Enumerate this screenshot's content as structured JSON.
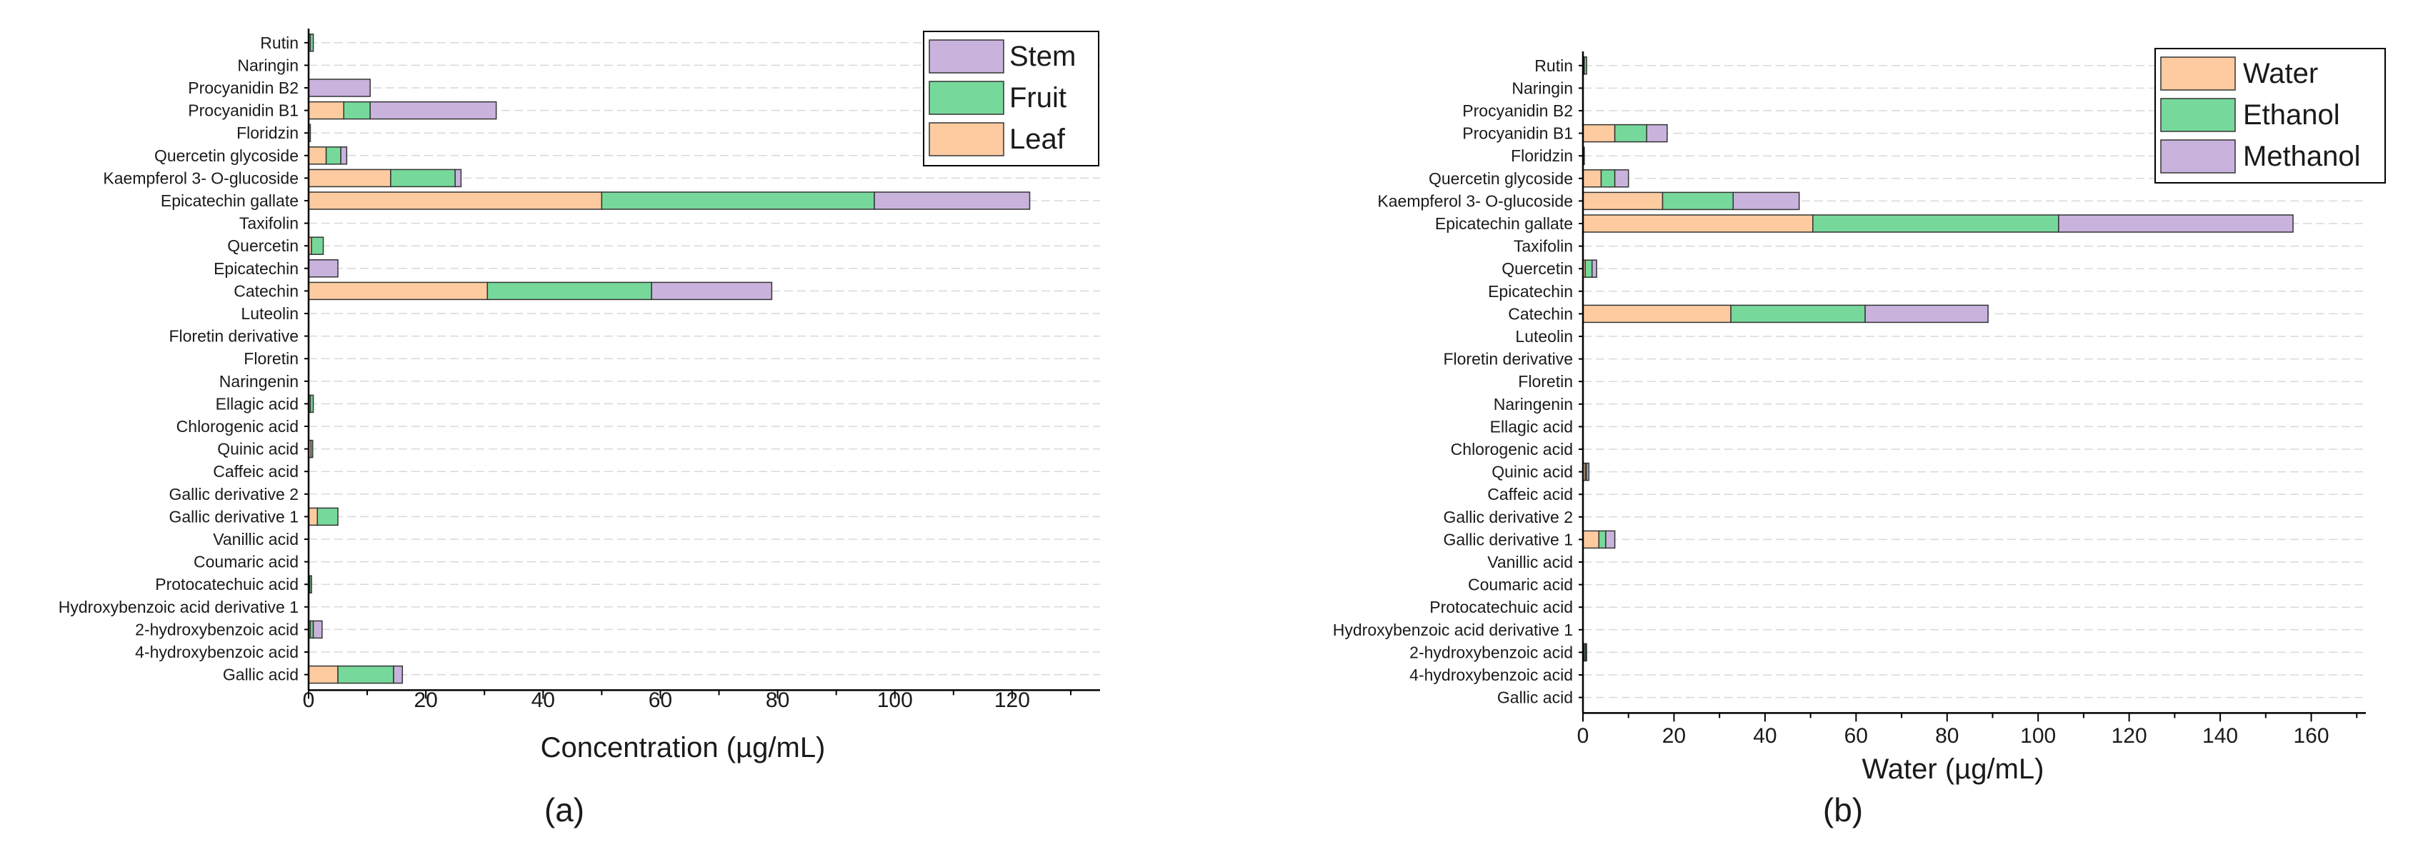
{
  "colors": {
    "leaf": "#fdcb9f",
    "fruit": "#76d99b",
    "stem": "#c9b3dd",
    "water": "#fdcb9f",
    "ethanol": "#76d99b",
    "methanol": "#c9b3dd",
    "grid": "#d9d9d9",
    "axis": "#000000"
  },
  "chart_data": [
    {
      "type": "bar",
      "orientation": "horizontal",
      "stacked": true,
      "panel_label": "(a)",
      "xlabel": "Concentration (µg/mL)",
      "ylabel": "",
      "xlim": [
        0,
        135
      ],
      "xticks": [
        "0",
        "20",
        "40",
        "60",
        "80",
        "100",
        "120"
      ],
      "grid": true,
      "legend_position": "top-right",
      "legend": [
        "Stem",
        "Fruit",
        "Leaf"
      ],
      "categories": [
        "Rutin",
        "Naringin",
        "Procyanidin B2",
        "Procyanidin B1",
        "Floridzin",
        "Quercetin glycoside",
        "Kaempferol 3- O-glucoside",
        "Epicatechin gallate",
        "Taxifolin",
        "Quercetin",
        "Epicatechin",
        "Catechin",
        "Luteolin",
        "Floretin derivative",
        "Floretin",
        "Naringenin",
        "Ellagic acid",
        "Chlorogenic acid",
        "Quinic acid",
        "Caffeic acid",
        "Gallic derivative 2",
        "Gallic derivative 1",
        "Vanillic acid",
        "Coumaric acid",
        "Protocatechuic acid",
        "Hydroxybenzoic acid derivative 1",
        "2-hydroxybenzoic acid",
        "4-hydroxybenzoic acid",
        "Gallic acid"
      ],
      "series": [
        {
          "name": "Leaf",
          "color": "#fdcb9f",
          "values": [
            0.3,
            0,
            0,
            6,
            0,
            3,
            14,
            50,
            0,
            0.5,
            0,
            30.5,
            0,
            0,
            0,
            0,
            0.3,
            0,
            0.4,
            0,
            0,
            1.5,
            0,
            0,
            0.2,
            0,
            0.3,
            0,
            5
          ]
        },
        {
          "name": "Fruit",
          "color": "#76d99b",
          "values": [
            0.5,
            0,
            0,
            4.5,
            0.3,
            2.5,
            11,
            46.5,
            0,
            2,
            0,
            28,
            0,
            0,
            0,
            0,
            0.5,
            0,
            0.3,
            0,
            0,
            3.5,
            0,
            0,
            0.3,
            0,
            0.5,
            0,
            9.5
          ]
        },
        {
          "name": "Stem",
          "color": "#c9b3dd",
          "values": [
            0,
            0,
            10.5,
            21.5,
            0,
            1,
            1,
            26.5,
            0,
            0,
            5,
            20.5,
            0,
            0,
            0,
            0,
            0,
            0,
            0,
            0,
            0,
            0,
            0,
            0,
            0,
            0,
            1.5,
            0,
            1.5
          ]
        }
      ]
    },
    {
      "type": "bar",
      "orientation": "horizontal",
      "stacked": true,
      "panel_label": "(b)",
      "xlabel": "Water (µg/mL)",
      "ylabel": "",
      "xlim": [
        0,
        172
      ],
      "xticks": [
        "0",
        "20",
        "40",
        "60",
        "80",
        "100",
        "120",
        "140",
        "160"
      ],
      "grid": true,
      "legend_position": "top-right",
      "legend": [
        "Water",
        "Ethanol",
        "Methanol"
      ],
      "categories": [
        "Rutin",
        "Naringin",
        "Procyanidin B2",
        "Procyanidin B1",
        "Floridzin",
        "Quercetin glycoside",
        "Kaempferol 3- O-glucoside",
        "Epicatechin gallate",
        "Taxifolin",
        "Quercetin",
        "Epicatechin",
        "Catechin",
        "Luteolin",
        "Floretin derivative",
        "Floretin",
        "Naringenin",
        "Ellagic acid",
        "Chlorogenic acid",
        "Quinic acid",
        "Caffeic acid",
        "Gallic derivative 2",
        "Gallic derivative 1",
        "Vanillic acid",
        "Coumaric acid",
        "Protocatechuic acid",
        "Hydroxybenzoic acid derivative 1",
        "2-hydroxybenzoic acid",
        "4-hydroxybenzoic acid",
        "Gallic acid"
      ],
      "series": [
        {
          "name": "Water",
          "color": "#fdcb9f",
          "values": [
            0.3,
            0,
            0,
            7,
            0,
            4,
            17.5,
            50.5,
            0,
            0.5,
            0,
            32.5,
            0,
            0,
            0,
            0,
            0,
            0,
            0.5,
            0,
            0,
            3.5,
            0,
            0,
            0,
            0,
            0.3,
            0,
            0
          ]
        },
        {
          "name": "Ethanol",
          "color": "#76d99b",
          "values": [
            0.5,
            0,
            0,
            7,
            0.3,
            3,
            15.5,
            54,
            0,
            1.5,
            0,
            29.5,
            0,
            0,
            0,
            0,
            0,
            0,
            0.3,
            0,
            0,
            1.5,
            0,
            0,
            0,
            0,
            0.3,
            0,
            0
          ]
        },
        {
          "name": "Methanol",
          "color": "#c9b3dd",
          "values": [
            0,
            0,
            0,
            4.5,
            0,
            3,
            14.5,
            51.5,
            0,
            1,
            0,
            27,
            0,
            0,
            0,
            0,
            0,
            0,
            0.5,
            0,
            0,
            2,
            0,
            0,
            0,
            0,
            0.2,
            0,
            0
          ]
        }
      ]
    }
  ]
}
